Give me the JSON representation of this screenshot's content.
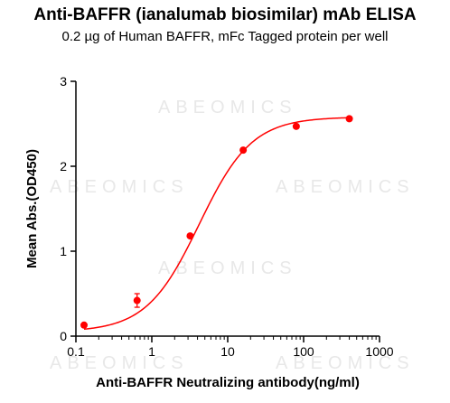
{
  "chart_data": {
    "type": "scatter",
    "title": "Anti-BAFFR (ianalumab biosimilar) mAb ELISA",
    "subtitle": "0.2 µg of Human BAFFR, mFc Tagged protein per well",
    "xlabel": "Anti-BAFFR Neutralizing antibody(ng/ml)",
    "ylabel": "Mean Abs.(OD450)",
    "xscale": "log",
    "xlim": [
      0.1,
      1000
    ],
    "ylim": [
      0,
      3
    ],
    "xticks": [
      {
        "value": 0.1,
        "label": "0.1"
      },
      {
        "value": 1,
        "label": "1"
      },
      {
        "value": 10,
        "label": "10"
      },
      {
        "value": 100,
        "label": "100"
      },
      {
        "value": 1000,
        "label": "1000"
      }
    ],
    "yticks": [
      {
        "value": 0,
        "label": "0"
      },
      {
        "value": 1,
        "label": "1"
      },
      {
        "value": 2,
        "label": "2"
      },
      {
        "value": 3,
        "label": "3"
      }
    ],
    "x": [
      0.128,
      0.64,
      3.2,
      16,
      80,
      400
    ],
    "y": [
      0.13,
      0.42,
      1.18,
      2.19,
      2.47,
      2.56
    ],
    "error": [
      0.02,
      0.08,
      0.02,
      0.02,
      0.02,
      0.02
    ],
    "fit_curve": {
      "type": "4PL",
      "bottom": 0.05,
      "top": 2.58,
      "ec50": 4.2,
      "hill": 1.25
    },
    "color": "#ff0000",
    "grid": false,
    "watermark": "ABEOMICS"
  }
}
